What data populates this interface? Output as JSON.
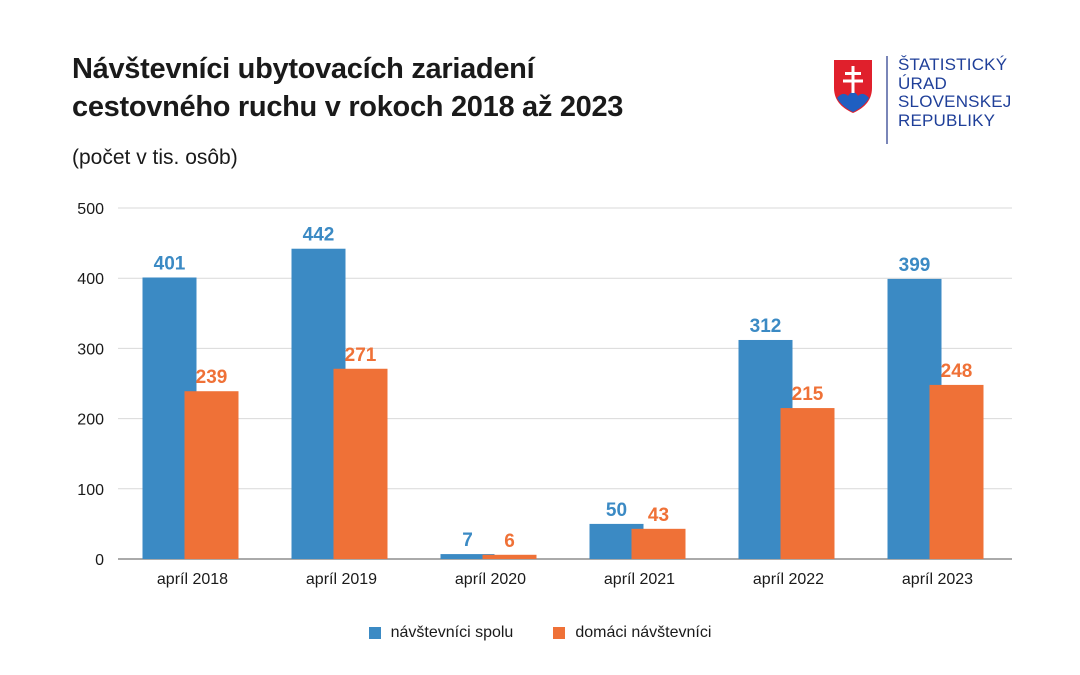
{
  "title_line1": "Návštevníci ubytovacích zariadení",
  "title_line2": "cestovného ruchu v rokoch 2018 až 2023",
  "subtitle": "(počet v tis. osôb)",
  "org_lines": [
    "ŠTATISTICKÝ",
    "ÚRAD",
    "SLOVENSKEJ",
    "REPUBLIKY"
  ],
  "colors": {
    "blue": "#3B8AC4",
    "orange": "#EF7137",
    "text": "#1a1a1a",
    "grid": "#d9d9d9",
    "org": "#1f3f99"
  },
  "chart_data": {
    "type": "bar",
    "title": "Návštevníci ubytovacích zariadení cestovného ruchu v rokoch 2018 až 2023",
    "subtitle": "(počet v tis. osôb)",
    "categories": [
      "apríl 2018",
      "apríl 2019",
      "apríl 2020",
      "apríl 2021",
      "apríl 2022",
      "apríl 2023"
    ],
    "series": [
      {
        "name": "návštevníci spolu",
        "color": "#3B8AC4",
        "values": [
          401,
          442,
          7,
          50,
          312,
          399
        ]
      },
      {
        "name": "domáci návštevníci",
        "color": "#EF7137",
        "values": [
          239,
          271,
          6,
          43,
          215,
          248
        ]
      }
    ],
    "yticks": [
      0,
      100,
      200,
      300,
      400,
      500
    ],
    "ylim": [
      0,
      500
    ],
    "xlabel": "",
    "ylabel": "",
    "grid": true,
    "legend_position": "bottom"
  }
}
